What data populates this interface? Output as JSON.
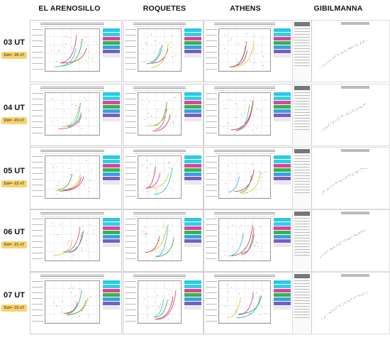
{
  "columns": [
    "EL ARENOSILLO",
    "ROQUETES",
    "ATHENS",
    "GIBILMANNA"
  ],
  "rows": [
    {
      "time": "03 UT",
      "dst": "Dst= -26 nT"
    },
    {
      "time": "04 UT",
      "dst": "Dst= -23 nT"
    },
    {
      "time": "05 UT",
      "dst": "Dst= -22 nT"
    },
    {
      "time": "06 UT",
      "dst": "Dst= -21 nT"
    },
    {
      "time": "07 UT",
      "dst": "Dst= -15 nT"
    }
  ],
  "colors": {
    "dst_badge": "#f7d36b",
    "legend": [
      "#28c8e8",
      "#2fd0e0",
      "#e040a0",
      "#2db84a",
      "#3aa0e0",
      "#7a5cc8",
      "#e8e8e8"
    ],
    "trace_red": "#c83030",
    "trace_cyan": "#28b8d8",
    "trace_green": "#2aa84a",
    "trace_magenta": "#d83090",
    "trace_yellow": "#d8c820"
  }
}
